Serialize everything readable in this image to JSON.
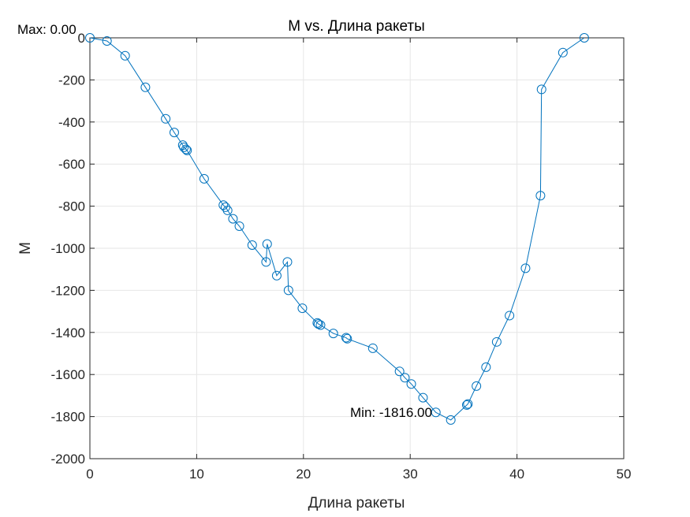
{
  "chart_data": {
    "type": "line",
    "title": "M vs. Длина ракеты",
    "xlabel": "Длина ракеты",
    "ylabel": "M",
    "xlim": [
      0,
      50
    ],
    "ylim": [
      -2000,
      0
    ],
    "xticks": [
      0,
      10,
      20,
      30,
      40,
      50
    ],
    "yticks": [
      -2000,
      -1800,
      -1600,
      -1400,
      -1200,
      -1000,
      -800,
      -600,
      -400,
      -200,
      0
    ],
    "grid": true,
    "marker": "circle",
    "line_color": "#0072BD",
    "series": [
      {
        "name": "",
        "x": [
          0,
          1.6,
          3.3,
          5.2,
          7.1,
          7.9,
          8.7,
          8.8,
          9.0,
          9.1,
          10.7,
          12.5,
          12.7,
          12.9,
          13.4,
          14.0,
          15.2,
          16.5,
          16.6,
          17.5,
          18.5,
          18.6,
          19.9,
          21.3,
          21.4,
          21.6,
          22.8,
          24.0,
          24.1,
          26.5,
          29.0,
          29.5,
          30.1,
          31.2,
          32.4,
          33.8,
          35.3,
          35.4,
          36.2,
          37.1,
          38.1,
          39.3,
          40.8,
          42.2,
          42.3,
          44.3,
          46.3
        ],
        "y": [
          0,
          -15,
          -85,
          -235,
          -385,
          -450,
          -510,
          -520,
          -530,
          -535,
          -670,
          -795,
          -805,
          -820,
          -860,
          -895,
          -985,
          -1065,
          -980,
          -1130,
          -1065,
          -1200,
          -1285,
          -1355,
          -1360,
          -1365,
          -1405,
          -1425,
          -1430,
          -1475,
          -1585,
          -1615,
          -1645,
          -1710,
          -1780,
          -1816,
          -1745,
          -1740,
          -1655,
          -1565,
          -1445,
          -1320,
          -1095,
          -750,
          -245,
          -70,
          0
        ]
      }
    ],
    "annotations": {
      "max_label": "Max: 0.00",
      "min_label": "Min: -1816.00"
    }
  }
}
